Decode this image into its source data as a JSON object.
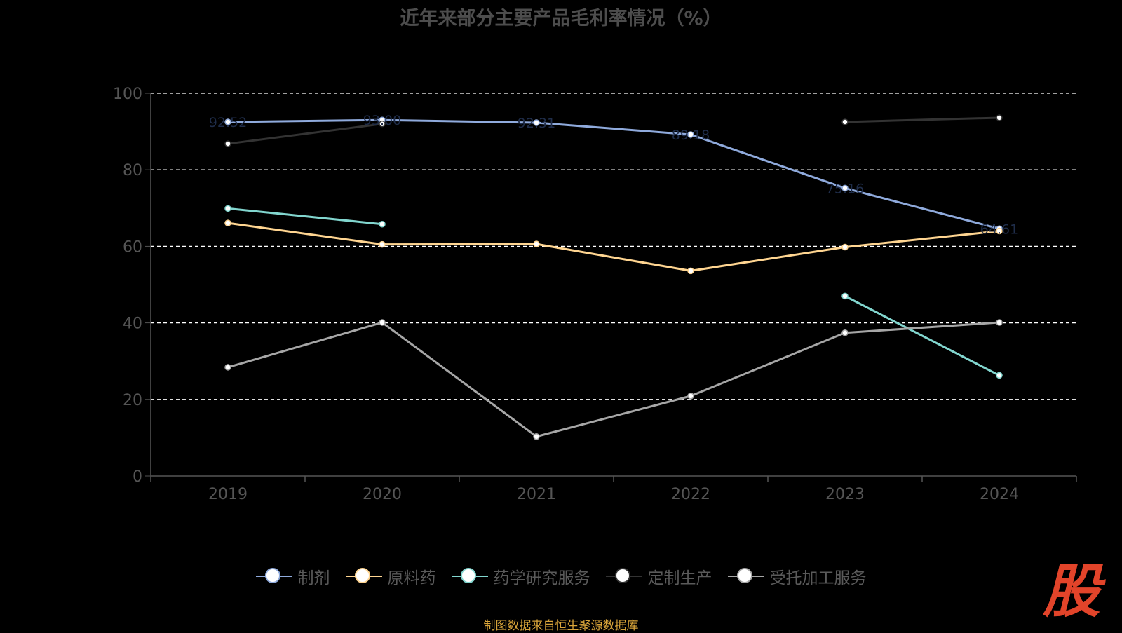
{
  "chart_data": {
    "type": "line",
    "title": "近年来部分主要产品毛利率情况（%）",
    "categories": [
      "2019",
      "2020",
      "2021",
      "2022",
      "2023",
      "2024"
    ],
    "ylim": [
      0,
      100
    ],
    "yticks": [
      0,
      20,
      40,
      60,
      80,
      100
    ],
    "grid": true,
    "legend_position": "bottom",
    "series": [
      {
        "name": "制剂",
        "color": "#8faadc",
        "values": [
          92.5,
          93.0,
          92.3,
          89.2,
          75.2,
          64.6
        ],
        "labels": [
          "92.52",
          "93.00",
          "92.31",
          "89.18",
          "75.16",
          "64.61"
        ]
      },
      {
        "name": "原料药",
        "color": "#ffd591",
        "values": [
          66.1,
          60.5,
          60.6,
          53.6,
          59.8,
          64.0
        ]
      },
      {
        "name": "药学研究服务",
        "color": "#82d6cf",
        "values": [
          69.9,
          65.8,
          null,
          null,
          47.0,
          26.3
        ]
      },
      {
        "name": "定制生产",
        "color": "#333333",
        "values": [
          86.8,
          92.0,
          null,
          null,
          92.5,
          93.6
        ]
      },
      {
        "name": "受托加工服务",
        "color": "#a6a6a6",
        "values": [
          28.4,
          40.1,
          10.3,
          20.9,
          37.4,
          40.1
        ]
      }
    ]
  },
  "footer": {
    "source": "制图数据来自恒生聚源数据库",
    "brand": "股"
  }
}
